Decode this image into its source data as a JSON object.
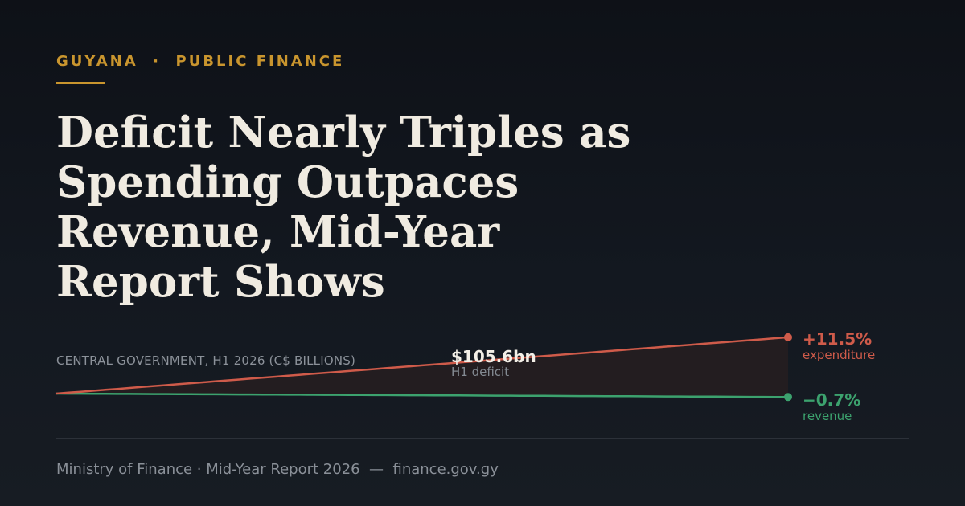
{
  "kicker": "GUYANA  ·  PUBLIC FINANCE",
  "headline": "Deficit Nearly Triples as Spending Outpaces Revenue, Mid-Year Report Shows",
  "chart_label": "CENTRAL GOVERNMENT, H1 2026 (C$ BILLIONS)",
  "callouts": {
    "deficit_value": "$105.6bn",
    "deficit_label": "H1 deficit",
    "expenditure_change": "+11.5%",
    "expenditure_label": "expenditure",
    "revenue_change": "−0.7%",
    "revenue_label": "revenue"
  },
  "footer": "Ministry of Finance · Mid-Year Report 2026  —  finance.gov.gy",
  "colors": {
    "accent": "#c9952e",
    "expenditure": "#cf5b4a",
    "revenue": "#3ca26e",
    "gap_fill": "#231d20"
  },
  "chart_data": {
    "type": "line",
    "title": "CENTRAL GOVERNMENT, H1 2026 (C$ BILLIONS)",
    "series": [
      {
        "name": "expenditure",
        "change_pct": 11.5
      },
      {
        "name": "revenue",
        "change_pct": -0.7
      }
    ],
    "gap_label": "H1 deficit",
    "gap_value": "$105.6bn",
    "grid": false,
    "legend": "end-labels"
  }
}
